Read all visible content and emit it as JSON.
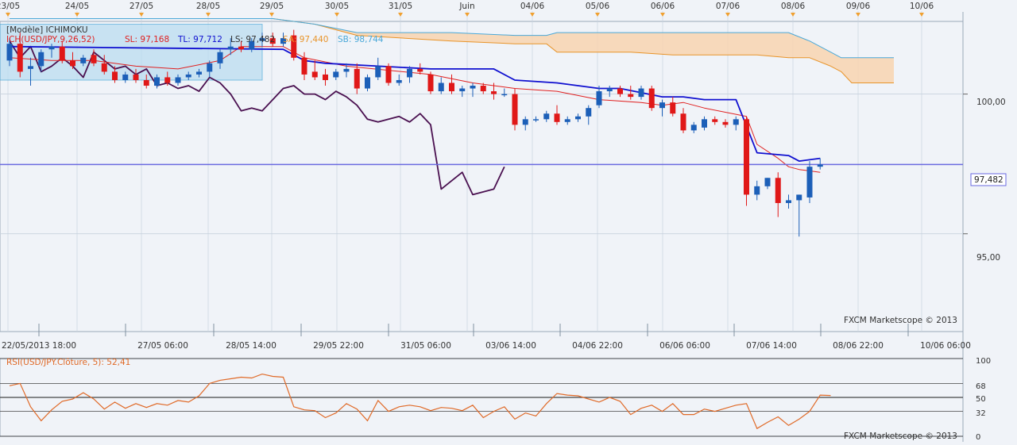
{
  "colors": {
    "background": "#f0f3f8",
    "grid": "#c8d2de",
    "bull_candle": "#1c5fb8",
    "bear_candle": "#e01818",
    "tenkan": "#1010d0",
    "kijun": "#e02020",
    "chikou": "#4a1050",
    "senkou_a": "#e8942a",
    "senkou_b": "#4aa8d8",
    "cloud_fill": "#f8d4b0",
    "price_line": "#6a6ae0",
    "rsi_line": "#e06a28",
    "marker": "#f0a030"
  },
  "top_dates": [
    "23/05",
    "24/05",
    "27/05",
    "28/05",
    "29/05",
    "30/05",
    "31/05",
    "Juin",
    "04/06",
    "05/06",
    "06/06",
    "07/06",
    "08/06",
    "09/06",
    "10/06"
  ],
  "legend": {
    "model": "[Modèle] ICHIMOKU",
    "series": "ICH(USD/JPY,9,26,52)",
    "sl": "SL: 97,168",
    "tl": "TL: 97,712",
    "ls": "LS: 97,482",
    "sa": "SA: 97,440",
    "sb": "SB: 98,744"
  },
  "price_axis": {
    "ticks": [
      "100,00",
      "95,00"
    ],
    "current": "97,482"
  },
  "bottom_times": [
    "22/05/2013 18:00",
    "27/05 06:00",
    "28/05 14:00",
    "29/05 22:00",
    "31/05 06:00",
    "03/06 14:00",
    "04/06 22:00",
    "06/06 06:00",
    "07/06 14:00",
    "08/06 22:00",
    "10/06 06:00"
  ],
  "watermark": "FXCM Marketscope © 2013",
  "rsi": {
    "legend": "RSI(USD/JPY.Clôture, 5): 52,41",
    "levels": [
      "100",
      "68",
      "50",
      "32",
      "0"
    ],
    "watermark": "FXCM Marketscope © 2013"
  },
  "chart_data": {
    "type": "candlestick",
    "symbol": "USD/JPY",
    "indicator": "Ichimoku (9, 26, 52)",
    "ylim": [
      91.5,
      102.6
    ],
    "x_range": [
      0,
      84
    ],
    "candles": [
      {
        "o": 101.2,
        "h": 102.0,
        "l": 101.0,
        "c": 101.8
      },
      {
        "o": 101.8,
        "h": 102.2,
        "l": 100.6,
        "c": 100.8
      },
      {
        "o": 100.9,
        "h": 101.3,
        "l": 100.3,
        "c": 101.0
      },
      {
        "o": 101.0,
        "h": 101.6,
        "l": 100.8,
        "c": 101.5
      },
      {
        "o": 101.6,
        "h": 101.8,
        "l": 101.3,
        "c": 101.7
      },
      {
        "o": 101.7,
        "h": 101.9,
        "l": 101.1,
        "c": 101.2
      },
      {
        "o": 101.2,
        "h": 101.5,
        "l": 100.9,
        "c": 101.0
      },
      {
        "o": 101.1,
        "h": 101.4,
        "l": 101.0,
        "c": 101.3
      },
      {
        "o": 101.4,
        "h": 101.6,
        "l": 101.0,
        "c": 101.1
      },
      {
        "o": 101.1,
        "h": 101.4,
        "l": 100.7,
        "c": 100.8
      },
      {
        "o": 100.8,
        "h": 101.0,
        "l": 100.4,
        "c": 100.5
      },
      {
        "o": 100.5,
        "h": 100.8,
        "l": 100.4,
        "c": 100.7
      },
      {
        "o": 100.7,
        "h": 100.9,
        "l": 100.4,
        "c": 100.5
      },
      {
        "o": 100.5,
        "h": 100.7,
        "l": 100.2,
        "c": 100.3
      },
      {
        "o": 100.3,
        "h": 100.7,
        "l": 100.2,
        "c": 100.6
      },
      {
        "o": 100.6,
        "h": 100.8,
        "l": 100.3,
        "c": 100.4
      },
      {
        "o": 100.4,
        "h": 100.7,
        "l": 100.3,
        "c": 100.6
      },
      {
        "o": 100.6,
        "h": 100.8,
        "l": 100.5,
        "c": 100.7
      },
      {
        "o": 100.7,
        "h": 100.9,
        "l": 100.6,
        "c": 100.8
      },
      {
        "o": 100.8,
        "h": 101.2,
        "l": 100.6,
        "c": 101.1
      },
      {
        "o": 101.1,
        "h": 101.6,
        "l": 100.9,
        "c": 101.5
      },
      {
        "o": 101.6,
        "h": 102.0,
        "l": 101.4,
        "c": 101.7
      },
      {
        "o": 101.7,
        "h": 101.9,
        "l": 101.5,
        "c": 101.6
      },
      {
        "o": 101.6,
        "h": 102.0,
        "l": 101.5,
        "c": 101.9
      },
      {
        "o": 101.9,
        "h": 102.2,
        "l": 101.7,
        "c": 102.0
      },
      {
        "o": 102.0,
        "h": 102.2,
        "l": 101.7,
        "c": 101.8
      },
      {
        "o": 101.8,
        "h": 102.2,
        "l": 101.7,
        "c": 102.0
      },
      {
        "o": 102.1,
        "h": 102.3,
        "l": 101.2,
        "c": 101.3
      },
      {
        "o": 101.3,
        "h": 101.5,
        "l": 100.5,
        "c": 100.7
      },
      {
        "o": 100.8,
        "h": 101.2,
        "l": 100.5,
        "c": 100.6
      },
      {
        "o": 100.7,
        "h": 100.9,
        "l": 100.3,
        "c": 100.5
      },
      {
        "o": 100.6,
        "h": 100.9,
        "l": 100.5,
        "c": 100.8
      },
      {
        "o": 100.8,
        "h": 101.1,
        "l": 100.6,
        "c": 100.9
      },
      {
        "o": 100.9,
        "h": 101.1,
        "l": 100.0,
        "c": 100.2
      },
      {
        "o": 100.2,
        "h": 100.7,
        "l": 100.1,
        "c": 100.6
      },
      {
        "o": 100.6,
        "h": 101.3,
        "l": 100.5,
        "c": 101.0
      },
      {
        "o": 101.0,
        "h": 101.1,
        "l": 100.3,
        "c": 100.4
      },
      {
        "o": 100.4,
        "h": 100.7,
        "l": 100.3,
        "c": 100.5
      },
      {
        "o": 100.6,
        "h": 101.0,
        "l": 100.4,
        "c": 100.9
      },
      {
        "o": 100.9,
        "h": 101.1,
        "l": 100.7,
        "c": 100.8
      },
      {
        "o": 100.7,
        "h": 100.8,
        "l": 100.0,
        "c": 100.1
      },
      {
        "o": 100.1,
        "h": 100.6,
        "l": 100.0,
        "c": 100.4
      },
      {
        "o": 100.4,
        "h": 100.7,
        "l": 100.0,
        "c": 100.1
      },
      {
        "o": 100.1,
        "h": 100.3,
        "l": 99.9,
        "c": 100.2
      },
      {
        "o": 100.2,
        "h": 100.4,
        "l": 99.9,
        "c": 100.3
      },
      {
        "o": 100.3,
        "h": 100.4,
        "l": 100.0,
        "c": 100.1
      },
      {
        "o": 100.1,
        "h": 100.4,
        "l": 99.8,
        "c": 100.0
      },
      {
        "o": 100.0,
        "h": 100.2,
        "l": 99.9,
        "c": 100.0
      },
      {
        "o": 100.0,
        "h": 100.2,
        "l": 98.7,
        "c": 98.9
      },
      {
        "o": 98.9,
        "h": 99.2,
        "l": 98.7,
        "c": 99.1
      },
      {
        "o": 99.1,
        "h": 99.2,
        "l": 99.0,
        "c": 99.1
      },
      {
        "o": 99.1,
        "h": 99.4,
        "l": 99.0,
        "c": 99.3
      },
      {
        "o": 99.3,
        "h": 99.6,
        "l": 98.9,
        "c": 99.0
      },
      {
        "o": 99.0,
        "h": 99.2,
        "l": 98.9,
        "c": 99.1
      },
      {
        "o": 99.1,
        "h": 99.3,
        "l": 99.0,
        "c": 99.2
      },
      {
        "o": 99.2,
        "h": 99.6,
        "l": 98.9,
        "c": 99.5
      },
      {
        "o": 99.6,
        "h": 100.3,
        "l": 99.5,
        "c": 100.1
      },
      {
        "o": 100.1,
        "h": 100.3,
        "l": 99.9,
        "c": 100.2
      },
      {
        "o": 100.2,
        "h": 100.3,
        "l": 99.9,
        "c": 100.0
      },
      {
        "o": 100.0,
        "h": 100.3,
        "l": 99.8,
        "c": 99.9
      },
      {
        "o": 99.9,
        "h": 100.3,
        "l": 99.8,
        "c": 100.2
      },
      {
        "o": 100.2,
        "h": 100.3,
        "l": 99.4,
        "c": 99.5
      },
      {
        "o": 99.5,
        "h": 99.8,
        "l": 99.2,
        "c": 99.7
      },
      {
        "o": 99.7,
        "h": 99.9,
        "l": 99.2,
        "c": 99.3
      },
      {
        "o": 99.3,
        "h": 99.5,
        "l": 98.6,
        "c": 98.7
      },
      {
        "o": 98.7,
        "h": 99.0,
        "l": 98.6,
        "c": 98.9
      },
      {
        "o": 98.8,
        "h": 99.2,
        "l": 98.7,
        "c": 99.1
      },
      {
        "o": 99.1,
        "h": 99.2,
        "l": 98.9,
        "c": 99.0
      },
      {
        "o": 99.0,
        "h": 99.1,
        "l": 98.8,
        "c": 98.9
      },
      {
        "o": 98.9,
        "h": 99.2,
        "l": 98.7,
        "c": 99.1
      },
      {
        "o": 99.1,
        "h": 99.2,
        "l": 96.0,
        "c": 96.4
      },
      {
        "o": 96.4,
        "h": 96.9,
        "l": 96.2,
        "c": 96.7
      },
      {
        "o": 96.7,
        "h": 97.0,
        "l": 96.6,
        "c": 97.0
      },
      {
        "o": 97.0,
        "h": 97.2,
        "l": 95.6,
        "c": 96.1
      },
      {
        "o": 96.1,
        "h": 96.4,
        "l": 95.9,
        "c": 96.2
      },
      {
        "o": 96.2,
        "h": 96.4,
        "l": 94.9,
        "c": 96.4
      },
      {
        "o": 96.3,
        "h": 97.6,
        "l": 96.1,
        "c": 97.4
      },
      {
        "o": 97.4,
        "h": 97.7,
        "l": 97.3,
        "c": 97.48
      }
    ],
    "tenkan": [
      [
        0,
        101.7
      ],
      [
        26,
        101.6
      ],
      [
        28,
        101.2
      ],
      [
        30,
        101.1
      ],
      [
        40,
        100.9
      ],
      [
        46,
        100.9
      ],
      [
        48,
        100.5
      ],
      [
        52,
        100.4
      ],
      [
        56,
        100.2
      ],
      [
        58,
        100.2
      ],
      [
        62,
        99.9
      ],
      [
        64,
        99.9
      ],
      [
        66,
        99.8
      ],
      [
        69,
        99.8
      ],
      [
        71,
        97.9
      ],
      [
        74,
        97.8
      ],
      [
        75,
        97.6
      ],
      [
        77,
        97.7
      ]
    ],
    "kijun": [
      [
        0,
        101.3
      ],
      [
        4,
        101.2
      ],
      [
        8,
        101.2
      ],
      [
        12,
        101.0
      ],
      [
        16,
        100.9
      ],
      [
        20,
        101.2
      ],
      [
        22,
        101.7
      ],
      [
        26,
        101.7
      ],
      [
        28,
        101.3
      ],
      [
        32,
        101.0
      ],
      [
        40,
        100.7
      ],
      [
        44,
        100.4
      ],
      [
        46,
        100.3
      ],
      [
        48,
        100.2
      ],
      [
        52,
        100.1
      ],
      [
        56,
        99.8
      ],
      [
        60,
        99.7
      ],
      [
        62,
        99.6
      ],
      [
        64,
        99.7
      ],
      [
        66,
        99.5
      ],
      [
        70,
        99.2
      ],
      [
        71,
        98.2
      ],
      [
        73,
        97.7
      ],
      [
        74,
        97.4
      ],
      [
        75,
        97.3
      ],
      [
        77,
        97.2
      ]
    ],
    "chikou": [
      [
        0,
        101.9
      ],
      [
        1,
        101.3
      ],
      [
        2,
        101.7
      ],
      [
        3,
        100.8
      ],
      [
        4,
        101.0
      ],
      [
        5,
        101.3
      ],
      [
        6,
        101.0
      ],
      [
        7,
        100.6
      ],
      [
        8,
        101.5
      ],
      [
        9,
        101.2
      ],
      [
        10,
        100.9
      ],
      [
        11,
        101.0
      ],
      [
        12,
        100.7
      ],
      [
        13,
        100.9
      ],
      [
        14,
        100.3
      ],
      [
        15,
        100.4
      ],
      [
        16,
        100.2
      ],
      [
        17,
        100.3
      ],
      [
        18,
        100.1
      ],
      [
        19,
        100.6
      ],
      [
        20,
        100.4
      ],
      [
        21,
        100.0
      ],
      [
        22,
        99.4
      ],
      [
        23,
        99.5
      ],
      [
        24,
        99.4
      ],
      [
        25,
        99.8
      ],
      [
        26,
        100.2
      ],
      [
        27,
        100.3
      ],
      [
        28,
        100.0
      ],
      [
        29,
        100.0
      ],
      [
        30,
        99.8
      ],
      [
        31,
        100.1
      ],
      [
        32,
        99.9
      ],
      [
        33,
        99.6
      ],
      [
        34,
        99.1
      ],
      [
        35,
        99.0
      ],
      [
        36,
        99.1
      ],
      [
        37,
        99.2
      ],
      [
        38,
        99.0
      ],
      [
        39,
        99.3
      ],
      [
        40,
        98.9
      ],
      [
        41,
        96.6
      ],
      [
        42,
        96.9
      ],
      [
        43,
        97.2
      ],
      [
        44,
        96.4
      ],
      [
        45,
        96.5
      ],
      [
        46,
        96.6
      ],
      [
        47,
        97.4
      ]
    ],
    "senkou_a": [
      [
        0,
        102.7
      ],
      [
        25,
        102.7
      ],
      [
        27,
        102.6
      ],
      [
        29,
        102.5
      ],
      [
        33,
        102.1
      ],
      [
        42,
        101.9
      ],
      [
        48,
        101.8
      ],
      [
        51,
        101.8
      ],
      [
        52,
        101.5
      ],
      [
        59,
        101.5
      ],
      [
        63,
        101.4
      ],
      [
        68,
        101.4
      ],
      [
        71,
        101.4
      ],
      [
        74,
        101.3
      ],
      [
        76,
        101.3
      ],
      [
        78,
        101.0
      ],
      [
        79,
        100.8
      ],
      [
        80,
        100.4
      ],
      [
        82,
        100.4
      ],
      [
        84,
        100.4
      ]
    ],
    "senkou_b": [
      [
        0,
        102.7
      ],
      [
        25,
        102.7
      ],
      [
        27,
        102.6
      ],
      [
        29,
        102.5
      ],
      [
        33,
        102.2
      ],
      [
        42,
        102.2
      ],
      [
        48,
        102.1
      ],
      [
        51,
        102.1
      ],
      [
        52,
        102.2
      ],
      [
        59,
        102.2
      ],
      [
        63,
        102.2
      ],
      [
        68,
        102.2
      ],
      [
        71,
        102.2
      ],
      [
        74,
        102.2
      ],
      [
        76,
        101.9
      ],
      [
        78,
        101.5
      ],
      [
        79,
        101.3
      ],
      [
        80,
        101.3
      ],
      [
        82,
        101.3
      ],
      [
        84,
        101.3
      ]
    ],
    "rsi": [
      [
        0,
        65
      ],
      [
        1,
        68
      ],
      [
        2,
        38
      ],
      [
        3,
        20
      ],
      [
        4,
        34
      ],
      [
        5,
        45
      ],
      [
        6,
        48
      ],
      [
        7,
        56
      ],
      [
        8,
        48
      ],
      [
        9,
        35
      ],
      [
        10,
        44
      ],
      [
        11,
        36
      ],
      [
        12,
        42
      ],
      [
        13,
        37
      ],
      [
        14,
        42
      ],
      [
        15,
        40
      ],
      [
        16,
        46
      ],
      [
        17,
        44
      ],
      [
        18,
        52
      ],
      [
        19,
        68
      ],
      [
        20,
        72
      ],
      [
        21,
        74
      ],
      [
        22,
        76
      ],
      [
        23,
        75
      ],
      [
        24,
        80
      ],
      [
        25,
        77
      ],
      [
        26,
        76
      ],
      [
        27,
        38
      ],
      [
        28,
        34
      ],
      [
        29,
        33
      ],
      [
        30,
        24
      ],
      [
        31,
        30
      ],
      [
        32,
        42
      ],
      [
        33,
        35
      ],
      [
        34,
        20
      ],
      [
        35,
        46
      ],
      [
        36,
        32
      ],
      [
        37,
        38
      ],
      [
        38,
        40
      ],
      [
        39,
        38
      ],
      [
        40,
        33
      ],
      [
        41,
        37
      ],
      [
        42,
        36
      ],
      [
        43,
        33
      ],
      [
        44,
        40
      ],
      [
        45,
        24
      ],
      [
        46,
        32
      ],
      [
        47,
        38
      ],
      [
        48,
        22
      ],
      [
        49,
        30
      ],
      [
        50,
        26
      ],
      [
        51,
        42
      ],
      [
        52,
        55
      ],
      [
        53,
        53
      ],
      [
        54,
        52
      ],
      [
        55,
        48
      ],
      [
        56,
        44
      ],
      [
        57,
        50
      ],
      [
        58,
        45
      ],
      [
        59,
        28
      ],
      [
        60,
        36
      ],
      [
        61,
        40
      ],
      [
        62,
        32
      ],
      [
        63,
        42
      ],
      [
        64,
        28
      ],
      [
        65,
        28
      ],
      [
        66,
        35
      ],
      [
        67,
        32
      ],
      [
        68,
        36
      ],
      [
        69,
        40
      ],
      [
        70,
        42
      ],
      [
        71,
        10
      ],
      [
        72,
        18
      ],
      [
        73,
        25
      ],
      [
        74,
        14
      ],
      [
        75,
        22
      ],
      [
        76,
        32
      ],
      [
        77,
        53
      ],
      [
        78,
        52.41
      ]
    ]
  }
}
